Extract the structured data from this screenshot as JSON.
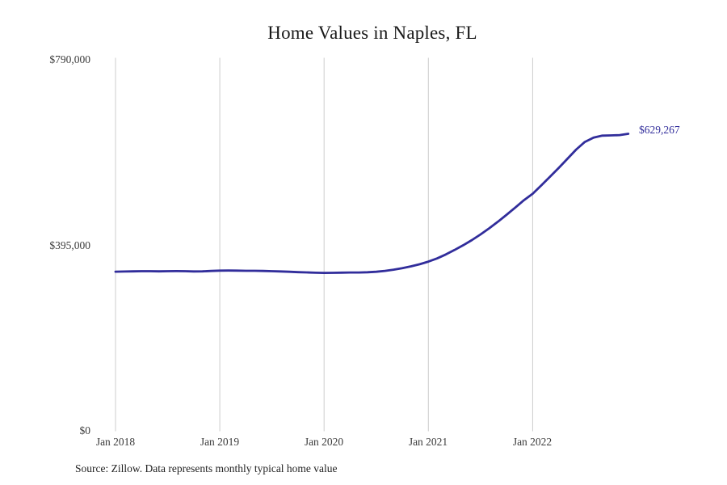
{
  "title": "Home Values in Naples, FL",
  "source_note": "Source: Zillow. Data represents monthly typical home value",
  "end_value_label": "$629,267",
  "colors": {
    "line": "#312D9B",
    "grid": "#CCCCCC",
    "axis_text": "#3B3B3B",
    "title_text": "#1A1A1A",
    "background": "#FFFFFF"
  },
  "y_axis": {
    "tick_labels": [
      "$790,000",
      "$395,000",
      "$0"
    ]
  },
  "x_axis": {
    "tick_labels": [
      "Jan 2018",
      "Jan 2019",
      "Jan 2020",
      "Jan 2021",
      "Jan 2022"
    ]
  },
  "chart_data": {
    "type": "line",
    "title": "Home Values in Naples, FL",
    "x_interval": "monthly",
    "x_start": "Jan 2018",
    "x_end": "Dec 2022",
    "x_tick_labels": [
      "Jan 2018",
      "Jan 2019",
      "Jan 2020",
      "Jan 2021",
      "Jan 2022"
    ],
    "y_tick_labels": [
      "$0",
      "$395,000",
      "$790,000"
    ],
    "y_tick_values": [
      0,
      395000,
      790000
    ],
    "ylim": [
      0,
      790000
    ],
    "grid": "vertical-only",
    "legend": "none",
    "last_value": 629267,
    "last_point_label": "$629,267",
    "series": [
      {
        "name": "Monthly typical home value",
        "color": "#312D9B",
        "values": [
          337500,
          337900,
          338300,
          338600,
          338500,
          338300,
          338500,
          338700,
          338500,
          338100,
          338300,
          339000,
          339700,
          340000,
          339800,
          339400,
          339500,
          339100,
          338600,
          338000,
          337300,
          336600,
          336000,
          335400,
          334900,
          335100,
          335500,
          335900,
          335800,
          336300,
          337400,
          339300,
          341900,
          345000,
          348800,
          353300,
          358900,
          365600,
          373900,
          383300,
          393400,
          404400,
          416400,
          429400,
          443300,
          458100,
          473400,
          488900,
          502600,
          520300,
          538600,
          557300,
          576500,
          596000,
          612000,
          621100,
          625300,
          625900,
          626600,
          629267
        ]
      }
    ]
  }
}
